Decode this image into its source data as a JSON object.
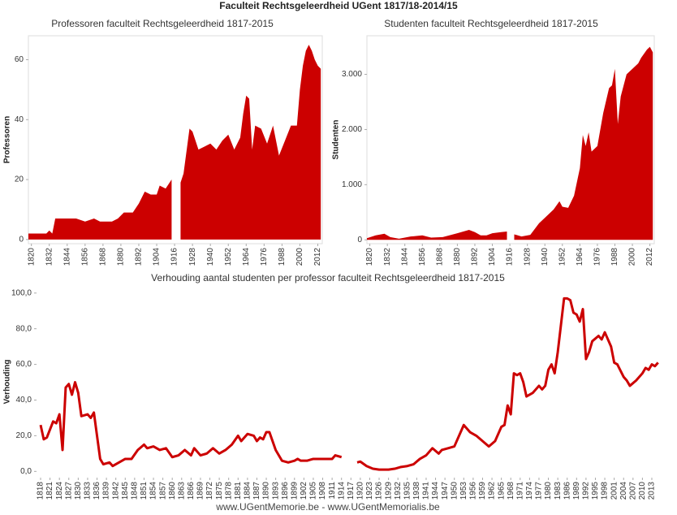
{
  "title": "Faculteit Rechtsgeleerdheid UGent 1817/18-2014/15",
  "footer": "www.UGentMemorie.be - www.UGentMemorialis.be",
  "chart_data": [
    {
      "type": "area",
      "title": "Professoren faculteit Rechtsgeleerdheid 1817-2015",
      "ylabel": "Professoren",
      "color": "#cc0000",
      "x": [
        1818,
        1824,
        1830,
        1832,
        1834,
        1836,
        1844,
        1850,
        1856,
        1862,
        1866,
        1870,
        1874,
        1878,
        1882,
        1888,
        1892,
        1896,
        1900,
        1904,
        1906,
        1910,
        1914,
        1917,
        1920,
        1922,
        1926,
        1928,
        1932,
        1936,
        1940,
        1944,
        1948,
        1952,
        1956,
        1960,
        1962,
        1964,
        1966,
        1968,
        1970,
        1974,
        1978,
        1982,
        1986,
        1990,
        1994,
        1998,
        2000,
        2002,
        2004,
        2006,
        2008,
        2010,
        2012,
        2014
      ],
      "values": [
        2,
        2,
        2,
        3,
        2,
        7,
        7,
        7,
        6,
        7,
        6,
        6,
        6,
        7,
        9,
        9,
        12,
        16,
        15,
        15,
        18,
        17,
        20,
        null,
        19,
        22,
        37,
        36,
        30,
        31,
        32,
        30,
        33,
        35,
        30,
        34,
        42,
        48,
        47,
        30,
        38,
        37,
        32,
        38,
        28,
        33,
        38,
        38,
        50,
        58,
        63,
        65,
        63,
        60,
        58,
        57
      ],
      "xlim": [
        1818,
        2015
      ],
      "ylim": [
        -1.4,
        68
      ],
      "xticks": [
        1820,
        1832,
        1844,
        1856,
        1868,
        1880,
        1892,
        1904,
        1916,
        1928,
        1940,
        1952,
        1964,
        1976,
        1988,
        2000,
        2012
      ],
      "yticks": [
        0,
        20,
        40,
        60
      ]
    },
    {
      "type": "area",
      "title": "Studenten faculteit Rechtsgeleerdheid 1817-2015",
      "ylabel": "Studenten",
      "color": "#cc0000",
      "x": [
        1818,
        1824,
        1830,
        1834,
        1840,
        1848,
        1856,
        1862,
        1870,
        1880,
        1888,
        1892,
        1896,
        1900,
        1904,
        1910,
        1914,
        1917,
        1919,
        1924,
        1930,
        1936,
        1940,
        1946,
        1950,
        1952,
        1956,
        1960,
        1964,
        1966,
        1968,
        1970,
        1972,
        1976,
        1980,
        1984,
        1986,
        1988,
        1990,
        1992,
        1996,
        2000,
        2004,
        2006,
        2010,
        2012,
        2014
      ],
      "values": [
        30,
        80,
        110,
        50,
        20,
        60,
        80,
        40,
        50,
        120,
        180,
        140,
        80,
        80,
        120,
        140,
        150,
        null,
        100,
        60,
        90,
        300,
        400,
        550,
        700,
        600,
        580,
        800,
        1300,
        1900,
        1700,
        1950,
        1600,
        1700,
        2300,
        2750,
        2800,
        3100,
        2100,
        2600,
        3000,
        3100,
        3200,
        3300,
        3450,
        3500,
        3400
      ],
      "xlim": [
        1818,
        2015
      ],
      "ylim": [
        -70,
        3700
      ],
      "xticks": [
        1820,
        1832,
        1844,
        1856,
        1868,
        1880,
        1892,
        1904,
        1916,
        1928,
        1940,
        1952,
        1964,
        1976,
        1988,
        2000,
        2012
      ],
      "yticks": [
        0,
        {
          "value": 1000,
          "label": "1.000"
        },
        {
          "value": 2000,
          "label": "2.000"
        },
        {
          "value": 3000,
          "label": "3.000"
        }
      ]
    },
    {
      "type": "line",
      "title": "Verhouding aantal studenten per professor faculteit Rechtsgeleerdheid 1817-2015",
      "ylabel": "Verhouding",
      "color": "#cc0000",
      "x": [
        1818,
        1819,
        1820,
        1822,
        1823,
        1824,
        1825,
        1826,
        1827,
        1828,
        1829,
        1830,
        1831,
        1833,
        1834,
        1835,
        1836,
        1837,
        1838,
        1840,
        1841,
        1843,
        1845,
        1847,
        1849,
        1851,
        1852,
        1854,
        1856,
        1858,
        1860,
        1862,
        1864,
        1866,
        1867,
        1869,
        1871,
        1873,
        1875,
        1877,
        1879,
        1881,
        1882,
        1884,
        1886,
        1887,
        1888,
        1889,
        1890,
        1891,
        1893,
        1895,
        1897,
        1899,
        1900,
        1901,
        1903,
        1905,
        1909,
        1911,
        1912,
        1914,
        1917,
        1919,
        1920,
        1922,
        1924,
        1926,
        1929,
        1931,
        1933,
        1935,
        1937,
        1939,
        1941,
        1943,
        1945,
        1946,
        1948,
        1950,
        1951,
        1953,
        1955,
        1957,
        1959,
        1961,
        1963,
        1965,
        1966,
        1967,
        1968,
        1969,
        1970,
        1971,
        1972,
        1973,
        1975,
        1977,
        1978,
        1979,
        1980,
        1981,
        1982,
        1983,
        1985,
        1986,
        1987,
        1988,
        1989,
        1990,
        1991,
        1992,
        1993,
        1994,
        1996,
        1997,
        1998,
        2000,
        2001,
        2002,
        2004,
        2005,
        2006,
        2008,
        2010,
        2011,
        2012,
        2013,
        2014,
        2015
      ],
      "values": [
        26,
        18,
        19,
        28,
        27,
        32,
        12,
        47,
        49,
        43,
        50,
        44,
        31,
        32,
        30,
        33,
        20,
        7,
        4,
        5,
        3,
        5,
        7,
        7,
        12,
        15,
        13,
        14,
        12,
        13,
        8,
        9,
        12,
        9,
        13,
        9,
        10,
        13,
        10,
        12,
        15,
        20,
        17,
        21,
        20,
        17,
        19,
        18,
        22,
        22,
        12,
        6,
        5,
        6,
        7,
        6,
        6,
        7,
        7,
        7,
        9,
        8,
        null,
        5,
        5.5,
        3,
        1.5,
        1,
        1,
        1.5,
        2.5,
        3,
        4,
        7,
        9,
        13,
        10,
        12,
        13,
        14,
        18,
        26,
        22,
        20,
        17,
        14,
        17,
        25,
        26,
        37,
        32,
        55,
        54,
        55,
        50,
        42,
        44,
        48,
        46,
        48,
        57,
        60,
        55,
        67,
        97,
        97,
        96,
        89,
        88,
        84,
        91,
        63,
        67,
        73,
        76,
        74,
        78,
        70,
        61,
        60,
        53,
        51,
        48,
        51,
        55,
        58,
        57,
        60,
        59,
        61
      ],
      "xlim": [
        1816.7,
        2014.3
      ],
      "ylim": [
        -3.5,
        104
      ],
      "xticks": [
        1818,
        1821,
        1824,
        1827,
        1830,
        1833,
        1836,
        1839,
        1842,
        1845,
        1848,
        1851,
        1854,
        1857,
        1860,
        1863,
        1866,
        1869,
        1872,
        1875,
        1878,
        1881,
        1884,
        1887,
        1890,
        1893,
        1896,
        1899,
        1902,
        1905,
        1908,
        1911,
        1914,
        1917,
        1920,
        1923,
        1926,
        1929,
        1932,
        1935,
        1938,
        1941,
        1944,
        1947,
        1950,
        1953,
        1956,
        1959,
        1962,
        1965,
        1968,
        1971,
        1974,
        1977,
        1980,
        1983,
        1986,
        1989,
        1992,
        1995,
        1998,
        2001,
        2004,
        2007,
        2010,
        2013
      ],
      "yticks": [
        {
          "value": 0,
          "label": "0,0"
        },
        {
          "value": 20,
          "label": "20,0"
        },
        {
          "value": 40,
          "label": "40,0"
        },
        {
          "value": 60,
          "label": "60,0"
        },
        {
          "value": 80,
          "label": "80,0"
        },
        {
          "value": 100,
          "label": "100,0"
        }
      ]
    }
  ]
}
